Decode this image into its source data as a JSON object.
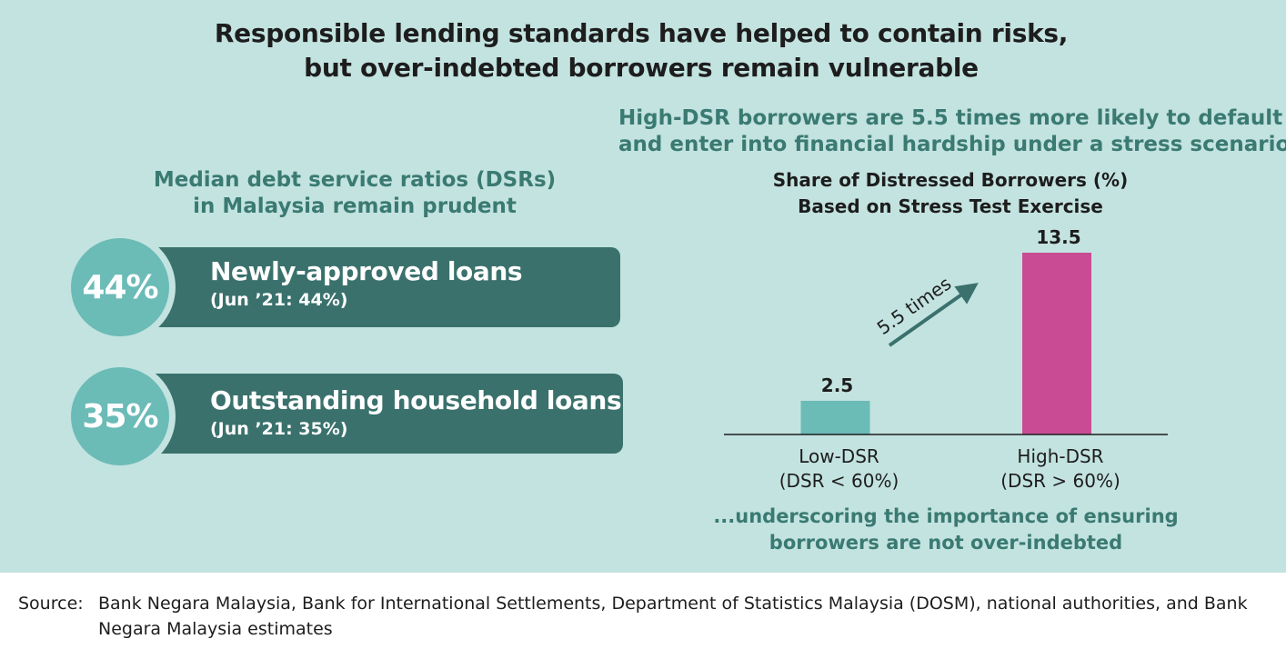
{
  "title": {
    "line1": "Responsible lending standards have helped to contain risks,",
    "line2": "but over-indebted borrowers remain vulnerable"
  },
  "left": {
    "heading_line1": "Median debt service ratios (DSRs)",
    "heading_line2": "in Malaysia remain prudent",
    "items": [
      {
        "value": "44%",
        "label": "Newly-approved loans",
        "sub": "(Jun ’21: 44%)"
      },
      {
        "value": "35%",
        "label": "Outstanding household loans",
        "sub": "(Jun ’21: 35%)"
      }
    ]
  },
  "right": {
    "heading_line1": "High-DSR borrowers are 5.5 times more likely to default",
    "heading_line2": "and enter into financial hardship under a stress scenario...",
    "note_line1": "...underscoring the importance of ensuring",
    "note_line2": "borrowers are not over-indebted"
  },
  "chart_data": {
    "type": "bar",
    "title": "Share of Distressed Borrowers (%)",
    "subtitle": "Based on Stress Test Exercise",
    "categories": [
      {
        "line1": "Low-DSR",
        "line2": "(DSR < 60%)"
      },
      {
        "line1": "High-DSR",
        "line2": "(DSR > 60%)"
      }
    ],
    "values": [
      2.5,
      13.5
    ],
    "colors": [
      "#6bbbb7",
      "#c94b93"
    ],
    "annotation": "5.5 times",
    "annotation_color": "#3a716c",
    "ylim": [
      0,
      13.5
    ],
    "grid": false
  },
  "source": {
    "label": "Source:",
    "text": "Bank Negara Malaysia, Bank for International Settlements, Department of Statistics Malaysia (DOSM), national authorities, and Bank Negara Malaysia estimates"
  },
  "colors": {
    "panel_bg": "#c3e3e0",
    "accent_dark": "#3a716c",
    "accent_light": "#6bbbb7",
    "heading_green": "#3a7a72",
    "high_dsr": "#c94b93"
  }
}
